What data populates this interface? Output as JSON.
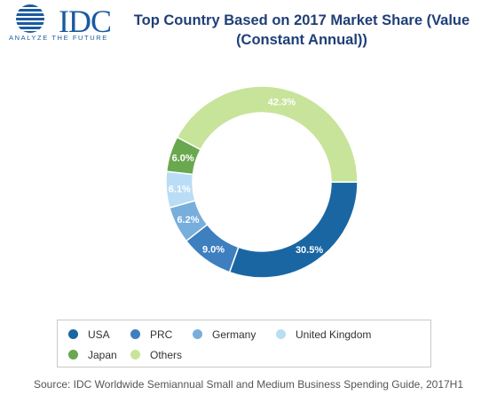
{
  "logo": {
    "name": "IDC",
    "tagline": "ANALYZE THE FUTURE"
  },
  "chart_data": {
    "type": "pie",
    "variant": "donut",
    "title": "Top Country Based on 2017 Market Share (Value (Constant Annual))",
    "title_lines": [
      "Top Country Based on 2017 Market Share (Value",
      "(Constant Annual))"
    ],
    "legend_position": "bottom",
    "slices": [
      {
        "label": "USA",
        "value": 30.5,
        "display": "30.5%",
        "color": "#1a66a3"
      },
      {
        "label": "PRC",
        "value": 9.0,
        "display": "9.0%",
        "color": "#3d7fbf"
      },
      {
        "label": "Germany",
        "value": 6.2,
        "display": "6.2%",
        "color": "#77aedb"
      },
      {
        "label": "United Kingdom",
        "value": 6.1,
        "display": "6.1%",
        "color": "#b9ddf5"
      },
      {
        "label": "Japan",
        "value": 6.0,
        "display": "6.0%",
        "color": "#6aa84f"
      },
      {
        "label": "Others",
        "value": 42.3,
        "display": "42.3%",
        "color": "#c7e49a"
      }
    ]
  },
  "source": "Source: IDC Worldwide Semiannual Small and Medium Business Spending Guide, 2017H1"
}
